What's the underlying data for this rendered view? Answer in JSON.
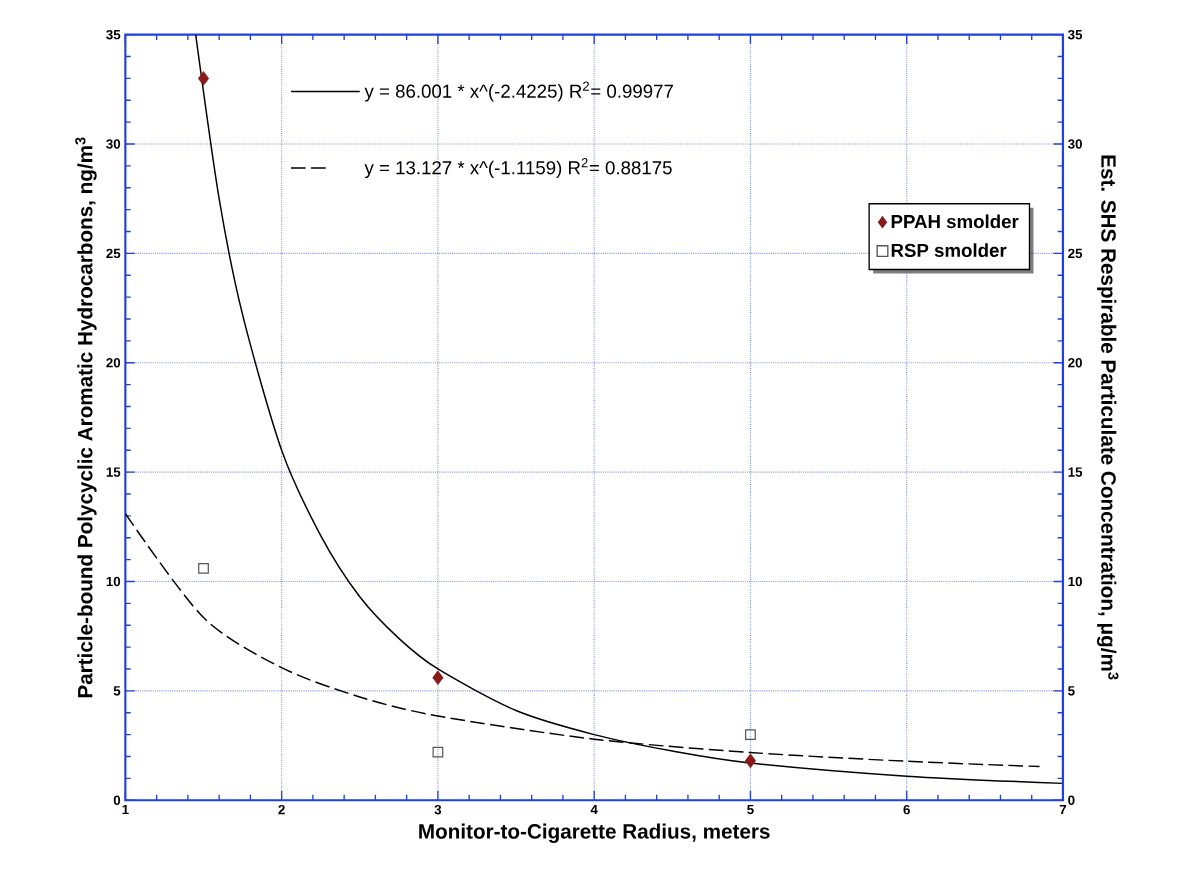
{
  "chart_data": {
    "type": "scatter",
    "xlabel": "Monitor-to-Cigarette Radius,  meters",
    "ylabel": "Particle-bound Polycyclic Aromatic Hydrocarbons, ng/m$^{3}$",
    "y2label": "Est. SHS Respirable Particulate Concentration, μg/m$^{3}$",
    "xlim": [
      1,
      7
    ],
    "xticks": [
      1,
      2,
      3,
      4,
      5,
      6,
      7
    ],
    "ylim": [
      0,
      35
    ],
    "yticks": [
      0,
      5,
      10,
      15,
      20,
      25,
      30,
      35
    ],
    "y2lim": [
      0,
      35
    ],
    "y2ticks": [
      0,
      5,
      10,
      15,
      20,
      25,
      30,
      35
    ],
    "grid": true,
    "legend": "top right",
    "series": [
      {
        "name": "PPAH smolder",
        "marker": "diamond",
        "color": "#8b1a1a",
        "x": [
          1.5,
          3,
          5
        ],
        "values": [
          33,
          5.6,
          1.8
        ]
      },
      {
        "name": "RSP smolder",
        "marker": "square",
        "color": "#555555",
        "axis": "y2",
        "x": [
          1.5,
          3,
          5
        ],
        "values": [
          10.6,
          2.2,
          3.0
        ]
      },
      {
        "name": "y = 86.001 * x^(-2.4225)   R$^{2}$= 0.99977",
        "type": "line",
        "line_style": "solid",
        "color": "#000000",
        "x": [
          1.45,
          1.6,
          1.75,
          2,
          2.25,
          2.5,
          2.75,
          3,
          3.5,
          4,
          4.5,
          5,
          6,
          7
        ],
        "values": [
          35,
          27.5,
          22.2,
          16.0,
          12.1,
          9.3,
          7.4,
          6.0,
          4.1,
          3.0,
          2.25,
          1.7,
          1.1,
          0.77
        ]
      },
      {
        "name": "y = 13.127 * x^(-1.1159)   R$^{2}$= 0.88175",
        "type": "line",
        "line_style": "dashed",
        "color": "#000000",
        "axis": "y2",
        "x": [
          1,
          1.5,
          2,
          2.5,
          3,
          4,
          5,
          6,
          6.85
        ],
        "values": [
          13.1,
          8.35,
          6.06,
          4.72,
          3.85,
          2.79,
          2.18,
          1.78,
          1.54
        ]
      }
    ]
  }
}
